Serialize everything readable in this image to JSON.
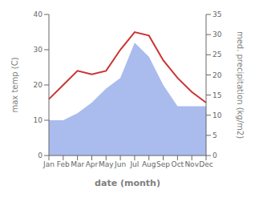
{
  "chart_data": {
    "type": "line",
    "categories": [
      "Jan",
      "Feb",
      "Mar",
      "Apr",
      "May",
      "Jun",
      "Jul",
      "Aug",
      "Sep",
      "Oct",
      "Nov",
      "Dec"
    ],
    "series": [
      {
        "type": "area",
        "color": "#aabbee",
        "values": [
          10,
          10,
          12,
          15,
          19,
          22,
          32,
          28,
          20,
          14,
          14,
          14
        ]
      },
      {
        "type": "line",
        "color": "#cc3333",
        "values": [
          16,
          20,
          24,
          23,
          24,
          30,
          35,
          34,
          27,
          22,
          18,
          15
        ]
      }
    ],
    "x_label": "date (month)",
    "y_label": "max temp (C)",
    "y2_label": "med. precipitation (kg/m2)",
    "ylim": [
      0,
      40
    ],
    "yticks": [
      0,
      10,
      20,
      30,
      40
    ],
    "y2lim": [
      0,
      35
    ],
    "y2ticks": [
      0,
      5,
      10,
      15,
      20,
      25,
      30,
      35
    ],
    "grid": false
  }
}
